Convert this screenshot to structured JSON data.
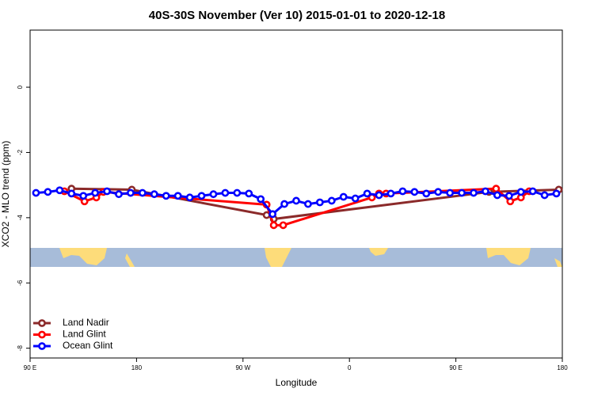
{
  "chart_data": {
    "type": "line",
    "title": "40S-30S November (Ver 10)   2015-01-01 to 2020-12-18",
    "x_label": "Longitude",
    "y_label": "XCO2 - MLO trend (ppm)",
    "xlim": [
      90,
      540
    ],
    "ylim": [
      -8.3,
      1.75
    ],
    "xticks": [
      {
        "value": 90,
        "label": "90 E"
      },
      180,
      {
        "value": 270,
        "label": "90 W"
      },
      {
        "value": 360,
        "label": "0"
      },
      {
        "value": 450,
        "label": "90 E"
      },
      {
        "value": 540,
        "label": "180"
      }
    ],
    "yticks": [
      0,
      -2,
      -4,
      -6,
      -8
    ],
    "legend": "bottom-left",
    "series": [
      {
        "name": "Land Nadir",
        "color": "#8b2a2a",
        "x": [
          125,
          176,
          290,
          296,
          478,
          537
        ],
        "values": [
          -3.11,
          -3.14,
          -3.92,
          -4.04,
          -3.21,
          -3.14
        ]
      },
      {
        "name": "Land Glint",
        "color": "#ff0000",
        "x": [
          119,
          136,
          146,
          152,
          290,
          296,
          304,
          379,
          385,
          391,
          484,
          496,
          505,
          512
        ],
        "values": [
          -3.19,
          -3.5,
          -3.38,
          -3.21,
          -3.6,
          -4.23,
          -4.23,
          -3.38,
          -3.26,
          -3.26,
          -3.11,
          -3.5,
          -3.38,
          -3.19
        ]
      },
      {
        "name": "Ocean Glint",
        "color": "#0000ff",
        "x": [
          95,
          105,
          115,
          125,
          135,
          145,
          155,
          165,
          175,
          185,
          195,
          205,
          215,
          225,
          235,
          245,
          255,
          265,
          275,
          285,
          295,
          305,
          315,
          325,
          335,
          345,
          355,
          365,
          375,
          385,
          395,
          405,
          415,
          425,
          435,
          445,
          455,
          465,
          475,
          485,
          495,
          505,
          515,
          525,
          535
        ],
        "values": [
          -3.24,
          -3.21,
          -3.16,
          -3.26,
          -3.33,
          -3.24,
          -3.19,
          -3.28,
          -3.24,
          -3.24,
          -3.28,
          -3.33,
          -3.33,
          -3.38,
          -3.33,
          -3.28,
          -3.24,
          -3.24,
          -3.26,
          -3.43,
          -3.89,
          -3.58,
          -3.48,
          -3.58,
          -3.53,
          -3.48,
          -3.36,
          -3.41,
          -3.26,
          -3.31,
          -3.26,
          -3.19,
          -3.21,
          -3.26,
          -3.21,
          -3.24,
          -3.24,
          -3.24,
          -3.19,
          -3.31,
          -3.33,
          -3.21,
          -3.19,
          -3.31,
          -3.26
        ]
      }
    ]
  }
}
